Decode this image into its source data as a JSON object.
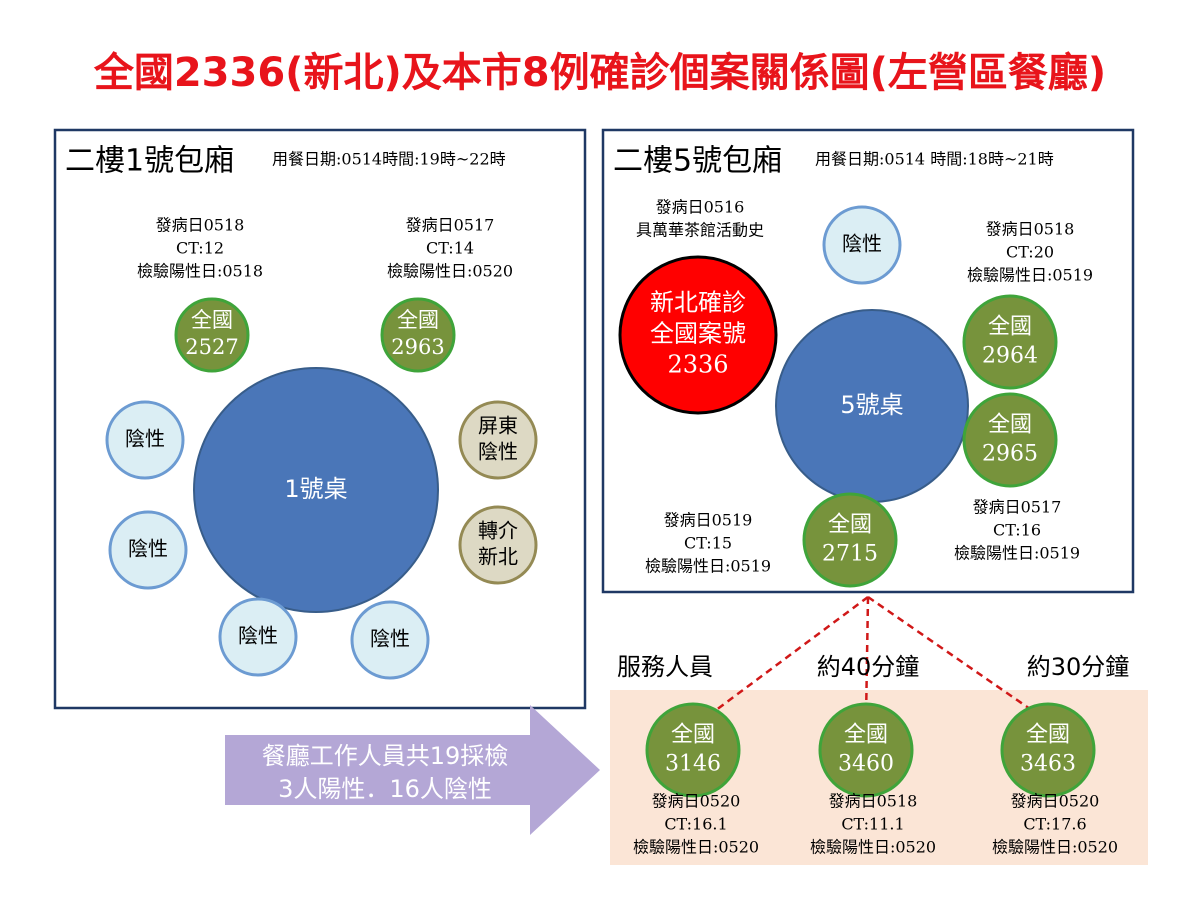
{
  "title": "全國2336(新北)及本市8例確診個案關係圖(左營區餐廳)",
  "room1": {
    "name": "二樓1號包廂",
    "info": "用餐日期:0514時間:19時~22時",
    "table": "1號桌",
    "nodes": [
      {
        "label": [
          "全國",
          "2527"
        ],
        "note": [
          "發病日0518",
          "CT:12",
          "檢驗陽性日:0518"
        ]
      },
      {
        "label": [
          "全國",
          "2963"
        ],
        "note": [
          "發病日0517",
          "CT:14",
          "檢驗陽性日:0520"
        ]
      },
      {
        "label": [
          "陰性"
        ]
      },
      {
        "label": [
          "陰性"
        ]
      },
      {
        "label": [
          "陰性"
        ]
      },
      {
        "label": [
          "陰性"
        ]
      },
      {
        "label": [
          "屏東",
          "陰性"
        ]
      },
      {
        "label": [
          "轉介",
          "新北"
        ]
      }
    ]
  },
  "room2": {
    "name": "二樓5號包廂",
    "info": "用餐日期:0514 時間:18時~21時",
    "table": "5號桌",
    "nodes": [
      {
        "label": [
          "新北確診",
          "全國案號",
          "2336"
        ],
        "note": [
          "發病日0516",
          "具萬華茶館活動史"
        ]
      },
      {
        "label": [
          "陰性"
        ]
      },
      {
        "label": [
          "全國",
          "2964"
        ],
        "note": [
          "發病日0518",
          "CT:20",
          "檢驗陽性日:0519"
        ]
      },
      {
        "label": [
          "全國",
          "2965"
        ],
        "note": [
          "發病日0517",
          "CT:16",
          "檢驗陽性日:0519"
        ]
      },
      {
        "label": [
          "全國",
          "2715"
        ],
        "note": [
          "發病日0519",
          "CT:15",
          "檢驗陽性日:0519"
        ]
      }
    ]
  },
  "staff": {
    "links": [
      "服務人員",
      "約40分鐘",
      "約30分鐘"
    ],
    "nodes": [
      {
        "label": [
          "全國",
          "3146"
        ],
        "note": [
          "發病日0520",
          "CT:16.1",
          "檢驗陽性日:0520"
        ]
      },
      {
        "label": [
          "全國",
          "3460"
        ],
        "note": [
          "發病日0518",
          "CT:11.1",
          "檢驗陽性日:0520"
        ]
      },
      {
        "label": [
          "全國",
          "3463"
        ],
        "note": [
          "發病日0520",
          "CT:17.6",
          "檢驗陽性日:0520"
        ]
      }
    ]
  },
  "arrow": [
    "餐廳工作人員共19採檢",
    "3人陽性．16人陰性"
  ]
}
